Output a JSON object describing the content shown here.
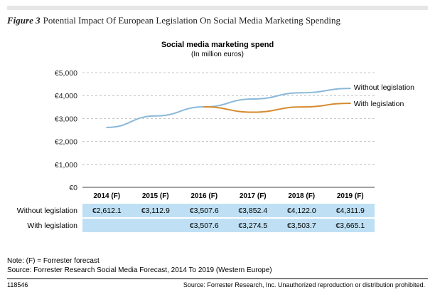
{
  "figure": {
    "label": "Figure 3",
    "title": "Potential Impact Of European Legislation On Social Media Marketing Spending"
  },
  "chart_data": {
    "type": "line",
    "title": "Social media marketing spend",
    "subtitle": "(In million euros)",
    "categories": [
      "2014 (F)",
      "2015 (F)",
      "2016 (F)",
      "2017 (F)",
      "2018 (F)",
      "2019 (F)"
    ],
    "ylim": [
      0,
      5000
    ],
    "yticks": [
      "€0",
      "€1,000",
      "€2,000",
      "€3,000",
      "€4,000",
      "€5,000"
    ],
    "grid": "horizontal dashed",
    "legend": "line-end labels",
    "series": [
      {
        "name": "Without legislation",
        "color": "#8ab8d8",
        "values": [
          2612.1,
          3112.9,
          3507.6,
          3852.4,
          4122.0,
          4311.9
        ],
        "labels": [
          "€2,612.1",
          "€3,112.9",
          "€3,507.6",
          "€3,852.4",
          "€4,122.0",
          "€4,311.9"
        ]
      },
      {
        "name": "With legislation",
        "color": "#d68a2e",
        "values": [
          null,
          null,
          3507.6,
          3274.5,
          3503.7,
          3665.1
        ],
        "labels": [
          "",
          "",
          "€3,507.6",
          "€3,274.5",
          "€3,503.7",
          "€3,665.1"
        ]
      }
    ],
    "table_fill": "#bfe0f4"
  },
  "notes": {
    "forecast": "Note: (F) = Forrester forecast",
    "source": "Source: Forrester Research Social Media Forecast, 2014 To 2019 (Western Europe)"
  },
  "footer": {
    "id": "118546",
    "source": "Source: Forrester Research, Inc. Unauthorized reproduction or distribution prohibited."
  }
}
